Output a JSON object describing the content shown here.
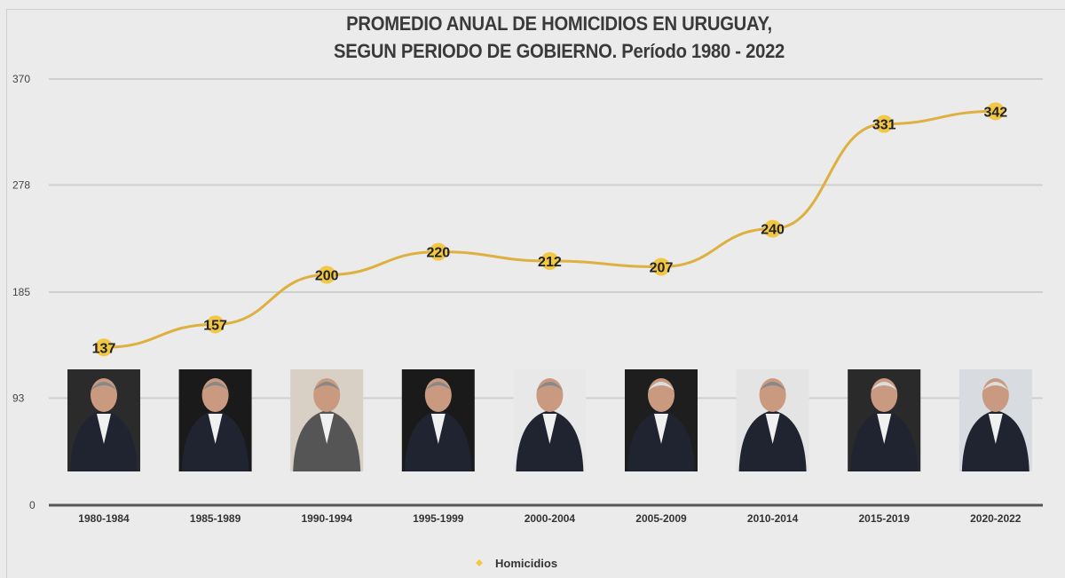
{
  "chart_data": {
    "type": "line",
    "title_line1": "PROMEDIO ANUAL DE HOMICIDIOS EN URUGUAY,",
    "title_line2": "SEGUN PERIODO DE GOBIERNO. Período 1980 - 2022",
    "categories": [
      "1980-1984",
      "1985-1989",
      "1990-1994",
      "1995-1999",
      "2000-2004",
      "2005-2009",
      "2010-2014",
      "2015-2019",
      "2020-2022"
    ],
    "series": [
      {
        "name": "Homicidios",
        "values": [
          137,
          157,
          200,
          220,
          212,
          207,
          240,
          331,
          342
        ]
      }
    ],
    "yticks": [
      0,
      93,
      185,
      278,
      370
    ],
    "ylim": [
      0,
      370
    ],
    "grid": true,
    "legend": "bottom",
    "colors": {
      "line": "#ddb040",
      "marker": "#f2c744",
      "grid": "#cfcfcf"
    },
    "images": [
      "portrait-1980-1984",
      "portrait-1985-1989",
      "portrait-1990-1994",
      "portrait-1995-1999",
      "portrait-2000-2004",
      "portrait-2005-2009",
      "portrait-2010-2014",
      "portrait-2015-2019",
      "portrait-2020-2022"
    ]
  }
}
